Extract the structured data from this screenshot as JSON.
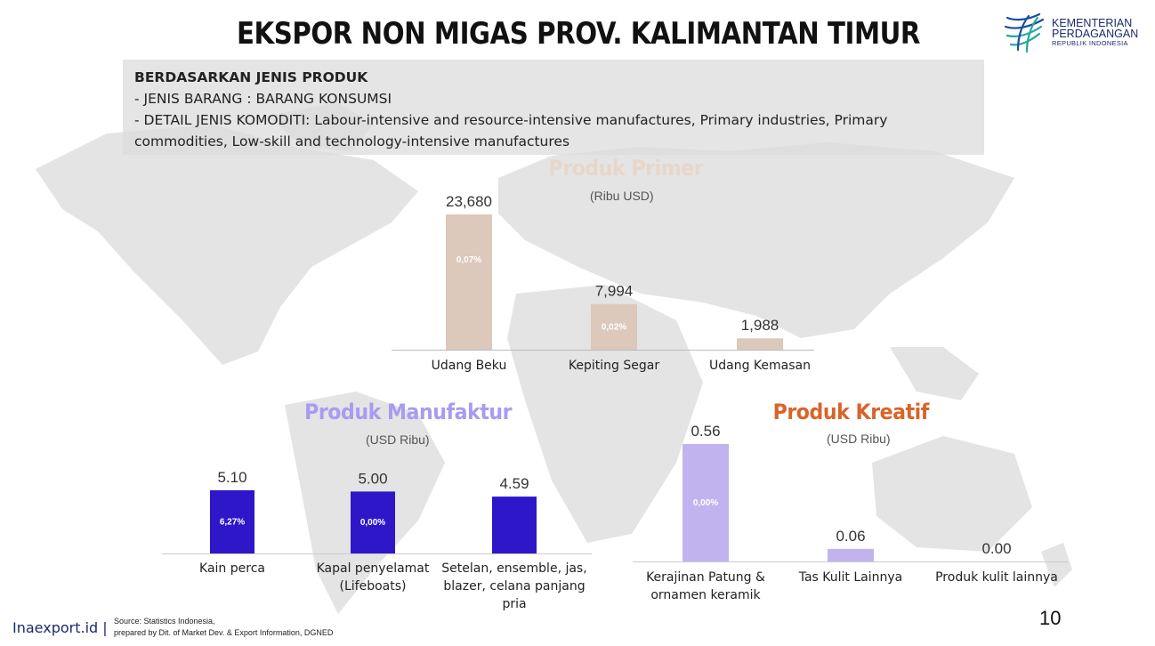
{
  "title": "EKSPOR NON MIGAS PROV. KALIMANTAN TIMUR",
  "logo": {
    "line1": "KEMENTERIAN",
    "line2": "PERDAGANGAN",
    "line3": "REPUBLIK INDONESIA"
  },
  "info": {
    "heading": "BERDASARKAN JENIS PRODUK",
    "line1": "- JENIS BARANG : BARANG KONSUMSI",
    "line2": "- DETAIL JENIS KOMODITI: Labour-intensive and resource-intensive manufactures, Primary industries, Primary",
    "line3": "commodities, Low-skill and technology-intensive manufactures"
  },
  "chart_data": [
    {
      "type": "bar",
      "title": "Produk Primer",
      "unit": "(Ribu USD)",
      "color": "#dcc9bc",
      "categories": [
        "Udang Beku",
        "Kepiting Segar",
        "Udang Kemasan"
      ],
      "values": [
        23680,
        7994,
        1988
      ],
      "value_labels": [
        "23,680",
        "7,994",
        "1,988"
      ],
      "share_labels": [
        "0,07%",
        "0,02%",
        ""
      ]
    },
    {
      "type": "bar",
      "title": "Produk Manufaktur",
      "unit": "(USD Ribu)",
      "color": "#2d17c9",
      "categories": [
        [
          "Kain perca"
        ],
        [
          "Kapal penyelamat",
          "(Lifeboats)"
        ],
        [
          "Setelan, ensemble, jas,",
          "blazer, celana panjang",
          "pria"
        ]
      ],
      "values": [
        5.1,
        5.0,
        4.59
      ],
      "value_labels": [
        "5.10",
        "5.00",
        "4.59"
      ],
      "share_labels": [
        "6,27%",
        "0,00%",
        ""
      ]
    },
    {
      "type": "bar",
      "title": "Produk Kreatif",
      "unit": "(USD Ribu)",
      "color": "#c1b4ee",
      "categories": [
        [
          "Kerajinan Patung &",
          "ornamen keramik"
        ],
        [
          "Tas Kulit Lainnya"
        ],
        [
          "Produk kulit lainnya"
        ]
      ],
      "values": [
        0.56,
        0.06,
        0.0
      ],
      "value_labels": [
        "0.56",
        "0.06",
        "0.00"
      ],
      "share_labels": [
        "0,00%",
        "",
        ""
      ]
    }
  ],
  "footer": {
    "brand": "Inaexport.id",
    "sep": "|",
    "source1": "Source: Statistics Indonesia,",
    "source2": "prepared by Dit. of Market Dev. & Export Information, DGNED",
    "page": "10"
  }
}
